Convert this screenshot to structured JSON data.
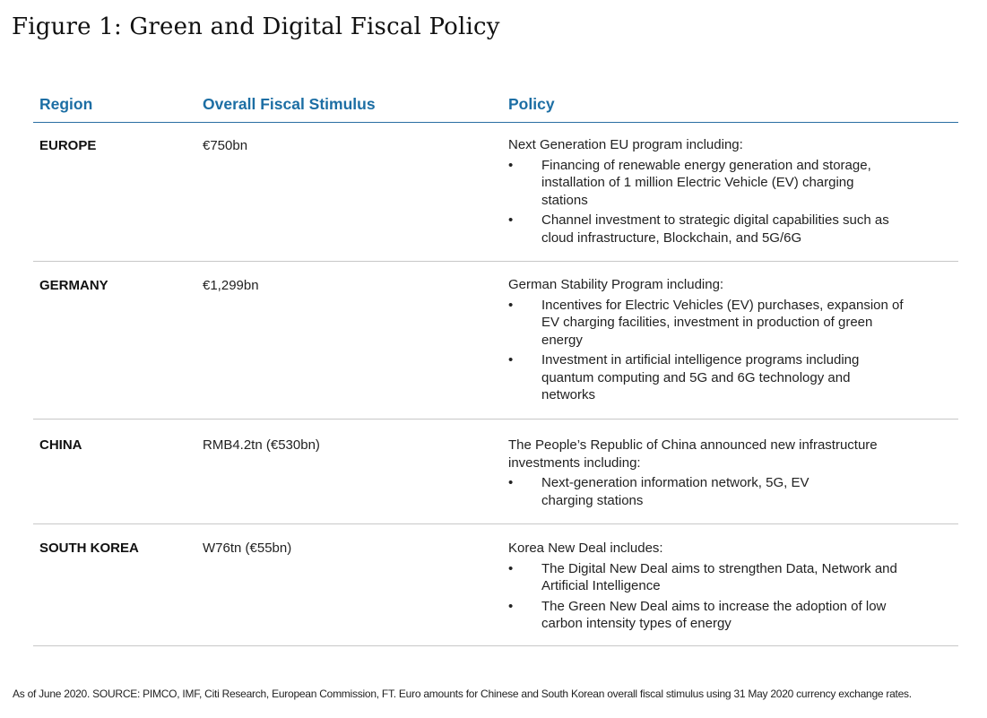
{
  "title": "Figure 1: Green and Digital Fiscal Policy",
  "headers": {
    "region": "Region",
    "stimulus": "Overall Fiscal Stimulus",
    "policy": "Policy"
  },
  "rows": [
    {
      "region": "EUROPE",
      "stimulus": "€750bn",
      "intro": "Next Generation EU program including:",
      "bullets": [
        "Financing of renewable energy generation and storage, installation of 1 million Electric Vehicle (EV) charging stations",
        "Channel investment to strategic digital capabilities such as cloud infrastructure, Blockchain, and 5G/6G"
      ]
    },
    {
      "region": "GERMANY",
      "stimulus": "€1,299bn",
      "intro": "German Stability Program including:",
      "bullets": [
        "Incentives for Electric Vehicles (EV) purchases, expansion of EV charging facilities, investment in production of green energy",
        "Investment in artificial intelligence programs including quantum computing and 5G and 6G technology and networks"
      ]
    },
    {
      "region": "CHINA",
      "stimulus": "RMB4.2tn (€530bn)",
      "intro": "The People’s Republic of China announced new infrastructure investments including:",
      "bullets": [
        "Next-generation information network, 5G, EV charging stations"
      ]
    },
    {
      "region": "SOUTH KOREA",
      "stimulus": "W76tn (€55bn)",
      "intro": "Korea New Deal includes:",
      "bullets": [
        "The Digital New Deal aims to strengthen Data, Network and Artificial Intelligence",
        "The Green New Deal aims to increase the adoption of low carbon intensity types of energy"
      ]
    }
  ],
  "bullet_symbol": "•",
  "footnote": "As of June 2020. SOURCE: PIMCO, IMF, Citi Research, European Commission, FT. Euro amounts for Chinese and South Korean overall fiscal stimulus using 31 May 2020 currency exchange rates.",
  "colors": {
    "header_text": "#1c6ea4",
    "header_rule": "#2a6ea3",
    "row_rule": "#c8c8c8"
  }
}
